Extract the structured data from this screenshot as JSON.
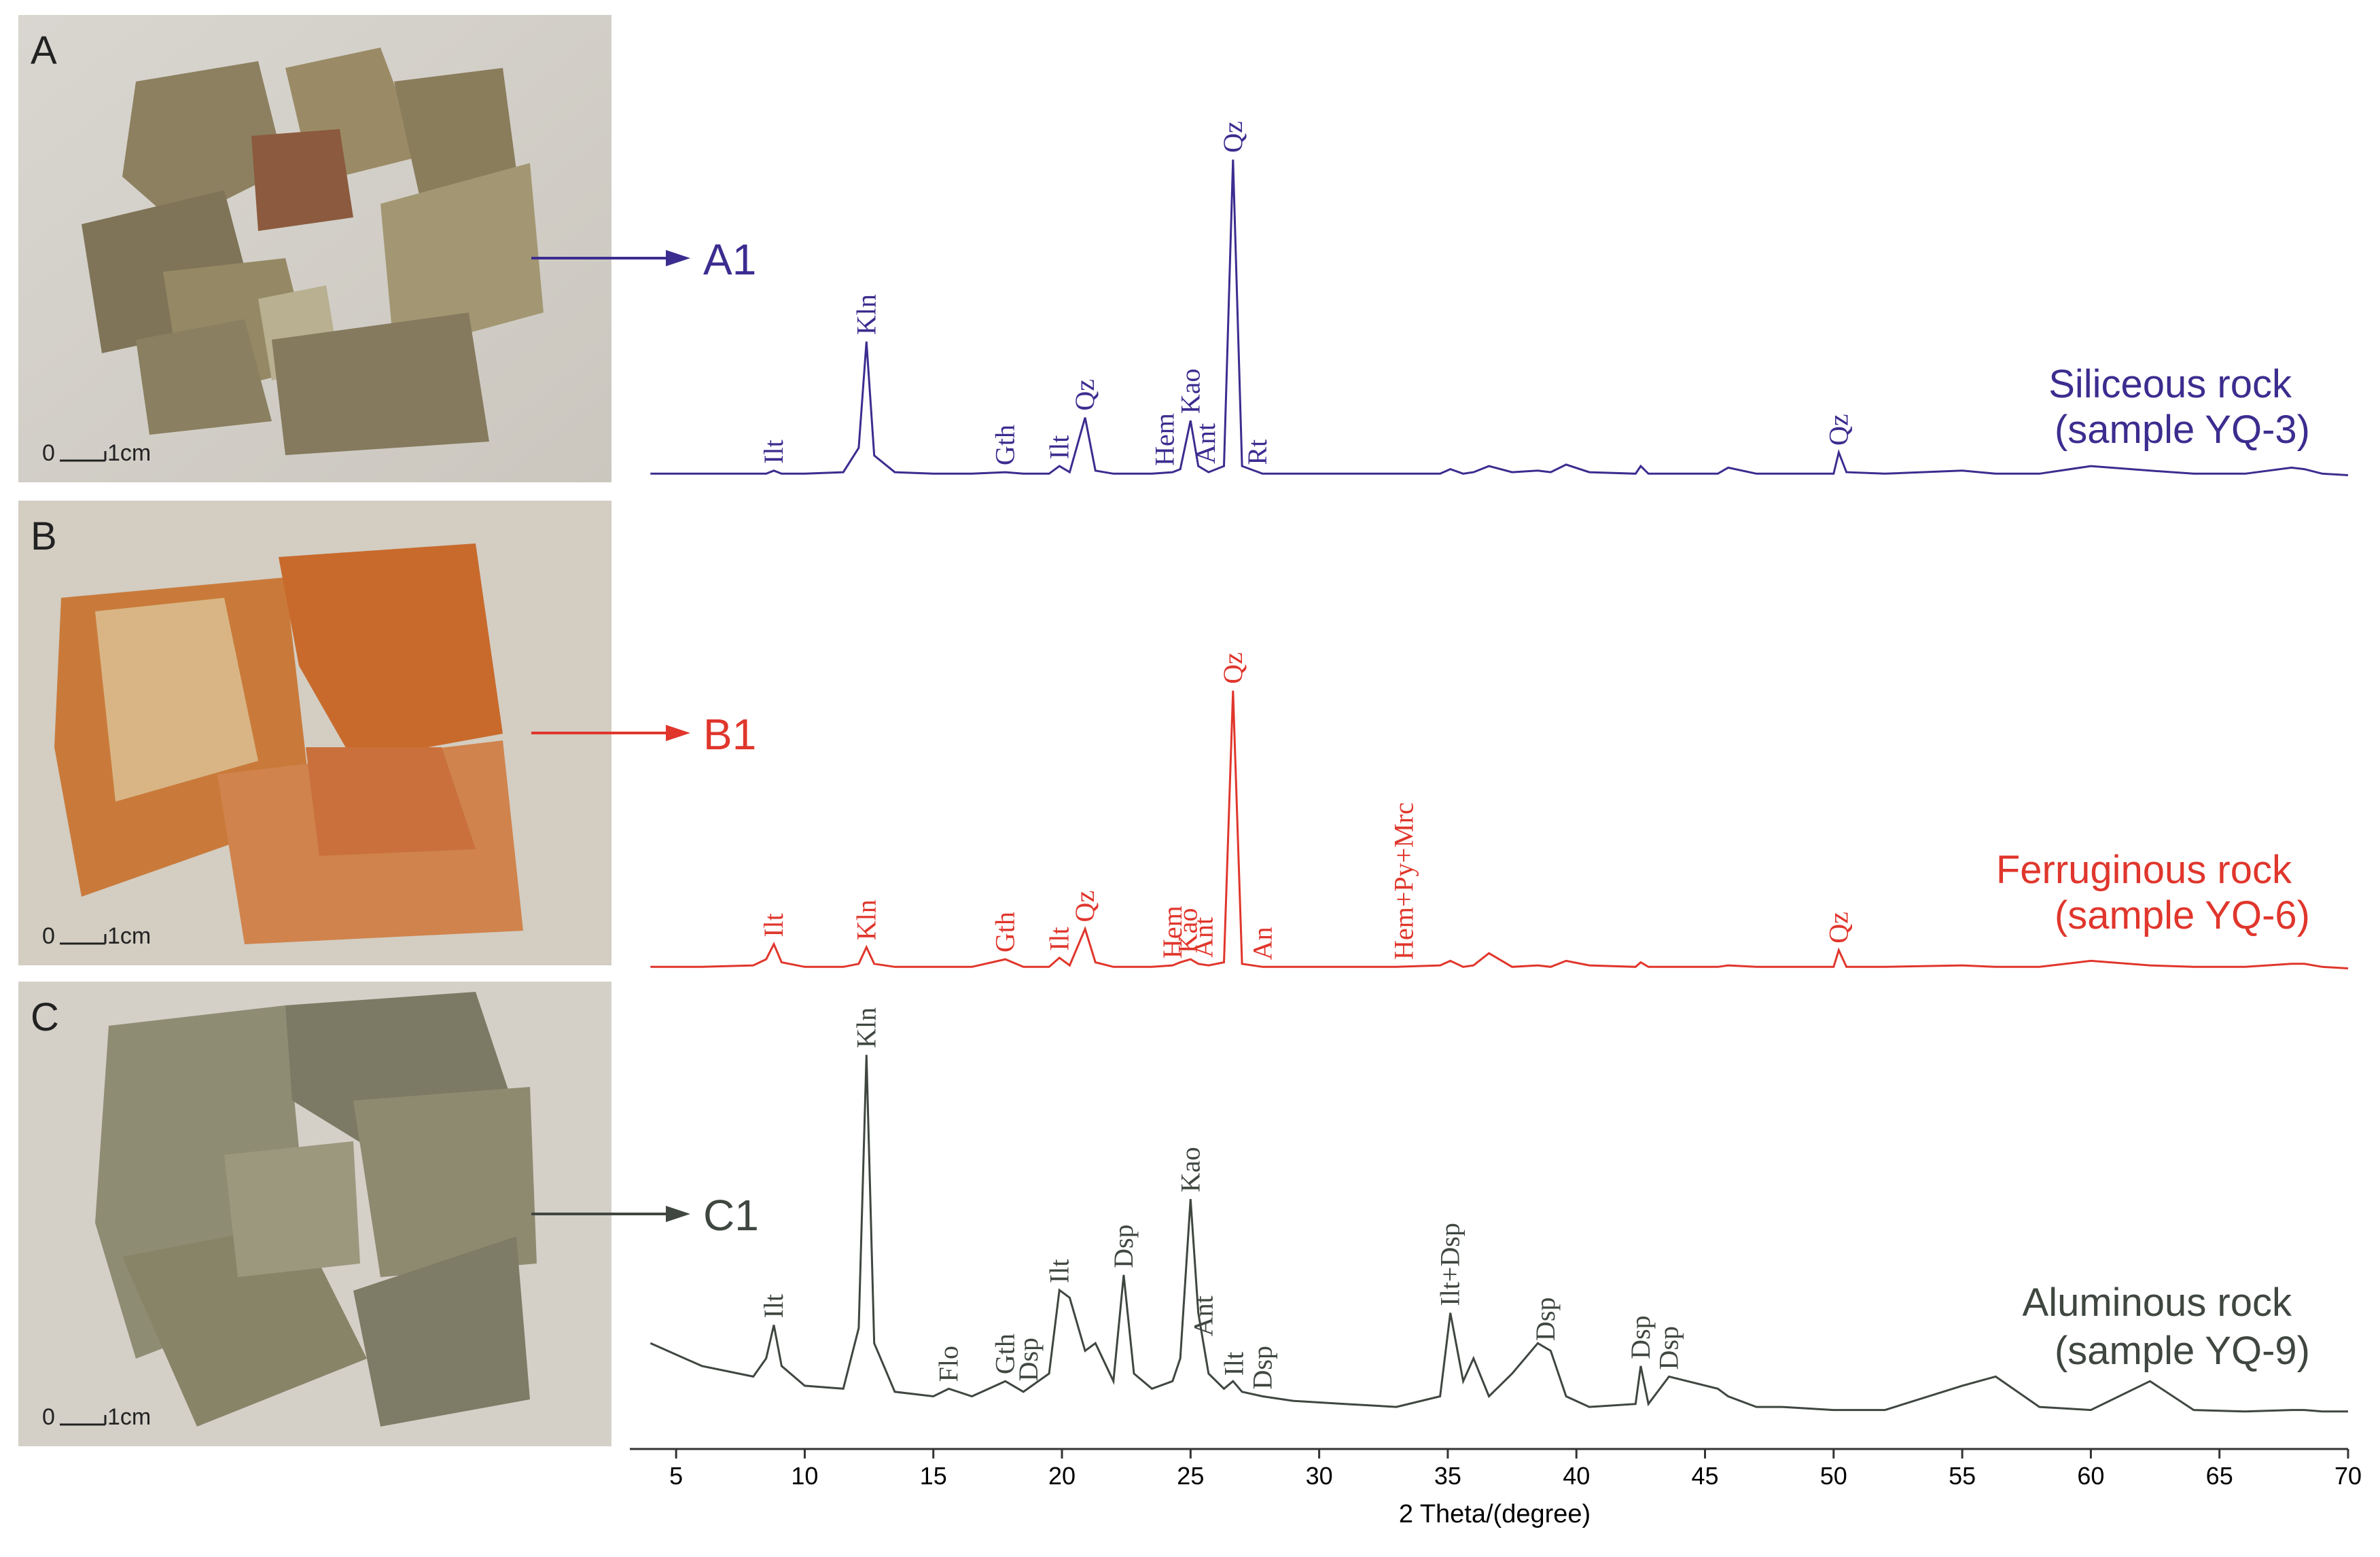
{
  "chart_data": {
    "type": "line",
    "x_label": "2 Theta/(degree)",
    "xlim": [
      3.2,
      70
    ],
    "xticks": [
      5,
      10,
      15,
      20,
      25,
      30,
      35,
      40,
      45,
      50,
      55,
      60,
      65,
      70
    ],
    "x": [
      4,
      6,
      8,
      8.5,
      8.8,
      9.1,
      10,
      11.5,
      12.1,
      12.4,
      12.7,
      13.5,
      15,
      15.6,
      16.5,
      17.8,
      18.5,
      19.5,
      19.9,
      20.3,
      20.9,
      21.3,
      22,
      22.4,
      22.8,
      23.5,
      24.3,
      24.6,
      25,
      25.3,
      25.7,
      26.3,
      26.65,
      27,
      27.8,
      29,
      31,
      33,
      34.7,
      35.1,
      35.6,
      36,
      36.6,
      37.5,
      38.5,
      39,
      39.6,
      40.5,
      42.3,
      42.5,
      42.8,
      43.6,
      45.5,
      45.9,
      47,
      48,
      50,
      50.2,
      50.5,
      52,
      55,
      56.3,
      58,
      60,
      62.3,
      64,
      66,
      67.8,
      68.3,
      69,
      70
    ],
    "series": [
      {
        "panel": "A",
        "arrow_label": "A1",
        "name": "Siliceous rock",
        "sample": "(sample YQ-3)",
        "color": "#3b2d8f",
        "values": [
          3,
          3,
          3,
          3,
          5,
          3,
          3,
          4,
          20,
          90,
          15,
          4,
          3,
          3,
          3,
          4,
          3,
          3,
          8,
          4,
          40,
          5,
          3,
          3,
          3,
          3,
          4,
          6,
          38,
          8,
          4,
          8,
          210,
          8,
          3,
          3,
          3,
          3,
          3,
          6,
          3,
          4,
          8,
          4,
          5,
          4,
          9,
          4,
          3,
          8,
          3,
          3,
          3,
          7,
          3,
          3,
          3,
          17,
          4,
          3,
          5,
          3,
          3,
          8,
          5,
          3,
          3,
          7,
          6,
          3,
          2
        ],
        "annotations": [
          {
            "text": "Ilt",
            "x": 8.8
          },
          {
            "text": "Kln",
            "x": 12.4
          },
          {
            "text": "Gth",
            "x": 17.8
          },
          {
            "text": "Ilt",
            "x": 19.9
          },
          {
            "text": "Qz",
            "x": 20.9
          },
          {
            "text": "Hem",
            "x": 24.0
          },
          {
            "text": "Kao",
            "x": 25.0
          },
          {
            "text": "Ant",
            "x": 25.6
          },
          {
            "text": "Qz",
            "x": 26.65
          },
          {
            "text": "Rt",
            "x": 27.6
          },
          {
            "text": "Qz",
            "x": 50.2
          }
        ]
      },
      {
        "panel": "B",
        "arrow_label": "B1",
        "name": "Ferruginous rock",
        "sample": "(sample YQ-6)",
        "color": "#e0362c",
        "values": [
          3,
          3,
          4,
          8,
          18,
          6,
          3,
          3,
          5,
          16,
          5,
          3,
          3,
          3,
          3,
          8,
          3,
          3,
          9,
          4,
          28,
          6,
          3,
          3,
          3,
          3,
          4,
          6,
          8,
          5,
          4,
          6,
          185,
          5,
          3,
          3,
          3,
          3,
          4,
          7,
          3,
          4,
          12,
          3,
          4,
          3,
          7,
          4,
          3,
          6,
          3,
          3,
          3,
          4,
          3,
          3,
          3,
          14,
          3,
          3,
          4,
          3,
          3,
          7,
          4,
          3,
          3,
          5,
          5,
          3,
          2
        ],
        "annotations": [
          {
            "text": "Ilt",
            "x": 8.8
          },
          {
            "text": "Kln",
            "x": 12.4
          },
          {
            "text": "Gth",
            "x": 17.8
          },
          {
            "text": "Ilt",
            "x": 19.9
          },
          {
            "text": "Qz",
            "x": 20.9
          },
          {
            "text": "Hem",
            "x": 24.3
          },
          {
            "text": "Kao",
            "x": 24.9
          },
          {
            "text": "Ant",
            "x": 25.5
          },
          {
            "text": "Qz",
            "x": 26.65
          },
          {
            "text": "An",
            "x": 27.8
          },
          {
            "text": "Hem+Py+Mrc",
            "x": 33.3
          },
          {
            "text": "Qz",
            "x": 50.2
          }
        ]
      },
      {
        "panel": "C",
        "arrow_label": "C1",
        "name": "Aluminous rock",
        "sample": "(sample YQ-9)",
        "color": "#3f4740",
        "values": [
          50,
          35,
          28,
          40,
          62,
          35,
          22,
          20,
          60,
          240,
          50,
          18,
          15,
          20,
          15,
          25,
          18,
          30,
          85,
          80,
          45,
          50,
          25,
          95,
          30,
          20,
          25,
          40,
          145,
          70,
          30,
          20,
          25,
          18,
          15,
          12,
          10,
          8,
          15,
          70,
          25,
          40,
          15,
          30,
          50,
          45,
          15,
          8,
          10,
          35,
          10,
          28,
          20,
          15,
          8,
          8,
          6,
          6,
          6,
          6,
          22,
          28,
          8,
          6,
          25,
          6,
          5,
          6,
          6,
          5,
          5
        ],
        "annotations": [
          {
            "text": "Ilt",
            "x": 8.8
          },
          {
            "text": "Kln",
            "x": 12.4
          },
          {
            "text": "Flo",
            "x": 15.6
          },
          {
            "text": "Gth",
            "x": 17.8
          },
          {
            "text": "Dsp",
            "x": 18.7
          },
          {
            "text": "Ilt",
            "x": 19.9
          },
          {
            "text": "Dsp",
            "x": 22.4
          },
          {
            "text": "Kao",
            "x": 25.0
          },
          {
            "text": "Ant",
            "x": 25.5
          },
          {
            "text": "Ilt",
            "x": 26.7
          },
          {
            "text": "Dsp",
            "x": 27.8
          },
          {
            "text": "Ilt+Dsp",
            "x": 35.1
          },
          {
            "text": "Dsp",
            "x": 38.8
          },
          {
            "text": "Dsp",
            "x": 42.5
          },
          {
            "text": "Dsp",
            "x": 43.6
          }
        ]
      }
    ]
  },
  "scale_bar": {
    "zero": "0",
    "unit": "1cm"
  }
}
